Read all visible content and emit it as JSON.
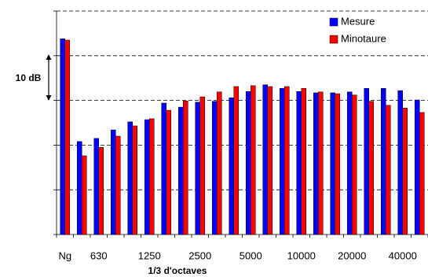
{
  "chart_data": {
    "type": "bar",
    "x_label": "1/3 d'octaves",
    "annotation": "10 dB",
    "categories": [
      "Ng",
      null,
      "630",
      null,
      null,
      "1250",
      null,
      null,
      "2500",
      null,
      null,
      "5000",
      null,
      null,
      "10000",
      null,
      null,
      "20000",
      null,
      null,
      "40000",
      null
    ],
    "series": [
      {
        "name": "Mesure",
        "color": "#0000ff",
        "values": [
          43.8,
          20.8,
          21.5,
          23.4,
          25.2,
          25.7,
          29.4,
          28.5,
          29.6,
          29.8,
          30.6,
          32.0,
          33.5,
          32.7,
          32.0,
          31.7,
          31.7,
          31.9,
          32.7,
          32.7,
          32.2,
          30.1
        ]
      },
      {
        "name": "Minotaure",
        "color": "#ff0000",
        "values": [
          43.5,
          17.6,
          19.5,
          22.0,
          24.3,
          25.9,
          27.8,
          29.9,
          30.8,
          31.9,
          33.1,
          33.3,
          33.1,
          33.1,
          32.7,
          31.9,
          31.5,
          31.2,
          29.8,
          28.9,
          28.3,
          27.3
        ]
      }
    ],
    "ylim": [
      0,
      50
    ],
    "yticks": [
      0,
      10,
      20,
      30,
      40,
      50
    ],
    "grid": true,
    "legend": "top-right"
  }
}
